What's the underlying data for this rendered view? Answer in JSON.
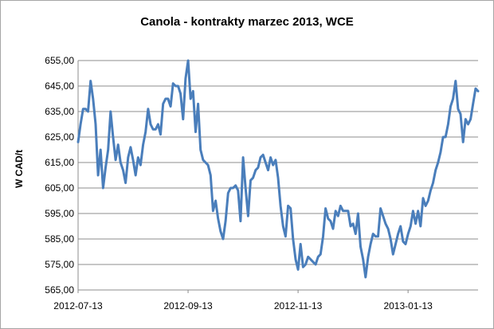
{
  "chart_data": {
    "type": "line",
    "title": "Canola - kontrakty marzec 2013, WCE",
    "xlabel": "",
    "ylabel": "W CAD/t",
    "ylim": [
      565,
      655
    ],
    "yticks": [
      "565,00",
      "575,00",
      "585,00",
      "595,00",
      "605,00",
      "615,00",
      "625,00",
      "635,00",
      "645,00",
      "655,00"
    ],
    "xticks": [
      "2012-07-13",
      "2012-09-13",
      "2012-11-13",
      "2013-01-13"
    ],
    "grid": "horizontal",
    "legend": "none",
    "series": [
      {
        "color": "#4a7ebb",
        "values": [
          623,
          630,
          636,
          636,
          635,
          647,
          640,
          630,
          610,
          620,
          605,
          613,
          620,
          635,
          625,
          616,
          622,
          615,
          612,
          607,
          617,
          621,
          616,
          610,
          617,
          614,
          622,
          627,
          636,
          630,
          628,
          628,
          630,
          626,
          638,
          640,
          640,
          637,
          646,
          645,
          645,
          642,
          632,
          648,
          655,
          640,
          643,
          627,
          638,
          620,
          616,
          615,
          614,
          610,
          596,
          600,
          593,
          588,
          585,
          592,
          603,
          605,
          605,
          606,
          604,
          592,
          617,
          605,
          594,
          608,
          609,
          612,
          613,
          617,
          618,
          615,
          612,
          617,
          614,
          616,
          609,
          598,
          590,
          586,
          598,
          597,
          585,
          577,
          573,
          583,
          574,
          575,
          578,
          577,
          576,
          575,
          578,
          579,
          586,
          597,
          593,
          592,
          589,
          596,
          594,
          598,
          596,
          596,
          596,
          590,
          591,
          587,
          595,
          582,
          577,
          570,
          578,
          583,
          587,
          586,
          586,
          597,
          594,
          591,
          589,
          585,
          579,
          583,
          587,
          590,
          584,
          583,
          587,
          590,
          596,
          591,
          596,
          590,
          601,
          598,
          600,
          604,
          607,
          612,
          615,
          619,
          625,
          625,
          630,
          637,
          640,
          647,
          636,
          634,
          623,
          632,
          630,
          632,
          638,
          644,
          643
        ]
      }
    ]
  }
}
